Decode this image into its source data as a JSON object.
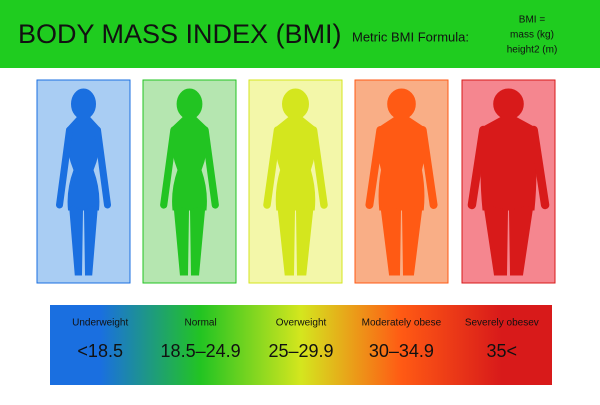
{
  "header": {
    "title": "BODY MASS INDEX (BMI)",
    "formula_label": "Metric BMI Formula:",
    "formula_lines": [
      "BMI =",
      "mass (kg)",
      "height2 (m)"
    ]
  },
  "categories": [
    {
      "label": "Underweight",
      "range": "<18.5",
      "color": "#1a6fe0",
      "panel_color": "#a9cdf3"
    },
    {
      "label": "Normal",
      "range": "18.5–24.9",
      "color": "#22c422",
      "panel_color": "#b5e6b0"
    },
    {
      "label": "Overweight",
      "range": "25–29.9",
      "color": "#d4e61e",
      "panel_color": "#f3f7a9"
    },
    {
      "label": "Moderately obese",
      "range": "30–34.9",
      "color": "#ff5a14",
      "panel_color": "#f9ae86"
    },
    {
      "label": "Severely obesev",
      "range": "35<",
      "color": "#d81a1a",
      "panel_color": "#f5868f"
    }
  ]
}
